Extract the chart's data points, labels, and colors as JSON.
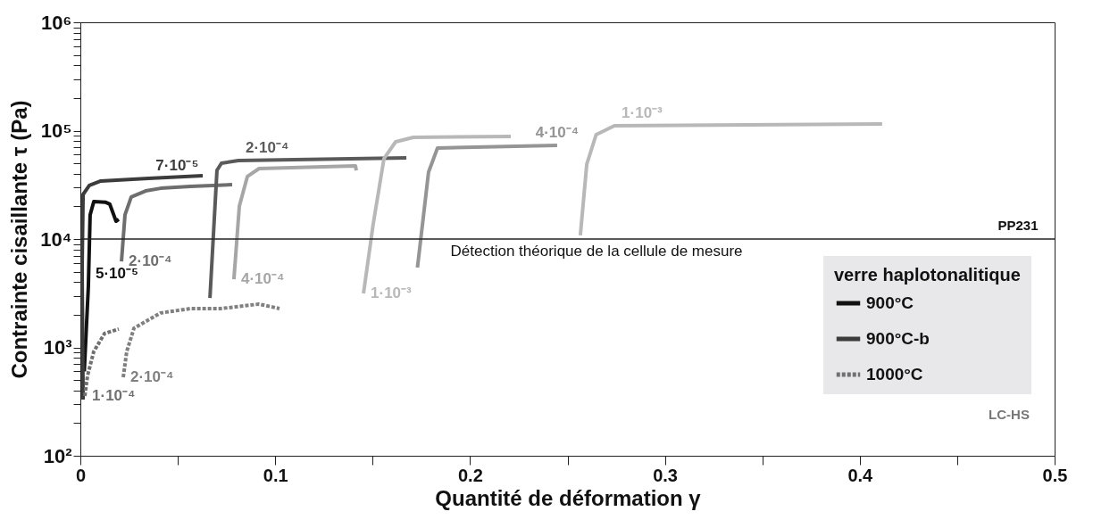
{
  "chart_data": {
    "type": "line",
    "xlabel": "Quantité de déformation γ",
    "ylabel": "Contrainte cisaillante τ (Pa)",
    "legend_title": "verre haplotonalitique",
    "legend": "right",
    "log": "y",
    "grid": false,
    "xlim": [
      0,
      0.5
    ],
    "xticks": [
      0,
      {
        "value": 0.05,
        "label": null
      },
      0.1,
      {
        "value": 0.15,
        "label": null
      },
      0.2,
      {
        "value": 0.25,
        "label": null
      },
      0.3,
      {
        "value": 0.35,
        "label": null
      },
      0.4,
      {
        "value": 0.45,
        "label": null
      },
      0.5
    ],
    "ylim": [
      100,
      1000000
    ],
    "yticks": [
      {
        "value": 100,
        "label": "10²"
      },
      {
        "value": 200,
        "label": null
      },
      {
        "value": 300,
        "label": null
      },
      {
        "value": 400,
        "label": null
      },
      {
        "value": 500,
        "label": null
      },
      {
        "value": 600,
        "label": null
      },
      {
        "value": 700,
        "label": null
      },
      {
        "value": 800,
        "label": null
      },
      {
        "value": 900,
        "label": null
      },
      {
        "value": 1000,
        "label": "10³"
      },
      {
        "value": 2000,
        "label": null
      },
      {
        "value": 3000,
        "label": null
      },
      {
        "value": 4000,
        "label": null
      },
      {
        "value": 5000,
        "label": null
      },
      {
        "value": 6000,
        "label": null
      },
      {
        "value": 7000,
        "label": null
      },
      {
        "value": 8000,
        "label": null
      },
      {
        "value": 9000,
        "label": null
      },
      {
        "value": 10000,
        "label": "10⁴"
      },
      {
        "value": 20000,
        "label": null
      },
      {
        "value": 30000,
        "label": null
      },
      {
        "value": 40000,
        "label": null
      },
      {
        "value": 50000,
        "label": null
      },
      {
        "value": 60000,
        "label": null
      },
      {
        "value": 70000,
        "label": null
      },
      {
        "value": 80000,
        "label": null
      },
      {
        "value": 90000,
        "label": null
      },
      {
        "value": 100000,
        "label": "10⁵"
      },
      {
        "value": 200000,
        "label": null
      },
      {
        "value": 300000,
        "label": null
      },
      {
        "value": 400000,
        "label": null
      },
      {
        "value": 500000,
        "label": null
      },
      {
        "value": 600000,
        "label": null
      },
      {
        "value": 700000,
        "label": null
      },
      {
        "value": 800000,
        "label": null
      },
      {
        "value": 900000,
        "label": null
      },
      {
        "value": 1000000,
        "label": "10⁶"
      }
    ],
    "series": [
      {
        "name": "900°C",
        "color": "#111111",
        "line_style": "solid",
        "x": [
          0.002,
          0.0041,
          0.005,
          0.0069,
          0.0128,
          0.0151,
          0.0183,
          0.0197
        ],
        "values": [
          600,
          3660,
          16700,
          22200,
          21900,
          21000,
          14600,
          15200
        ]
      },
      {
        "name": "900°C-b",
        "color": "#3c3c3c",
        "line_style": "solid",
        "x": [
          0.0014,
          0.0009,
          0.0014,
          0.0046,
          0.0105,
          0.035,
          0.0628
        ],
        "values": [
          330,
          5350,
          25800,
          31200,
          34300,
          36300,
          38400
        ]
      },
      {
        "name": "1000°C",
        "color": "#707070",
        "line_style": "dashed",
        "x": [
          0.0023,
          0.0037,
          0.0069,
          0.0124,
          0.0197
        ],
        "values": [
          356,
          551,
          918,
          1343,
          1476
        ]
      },
      {
        "color": "#6e6e6e",
        "line_style": "solid",
        "x": [
          0.0211,
          0.0229,
          0.0261,
          0.0335,
          0.0412,
          0.0564,
          0.0779
        ],
        "values": [
          6220,
          16700,
          24400,
          27800,
          29400,
          30600,
          31800
        ]
      },
      {
        "color": "#5a5a5a",
        "line_style": "solid",
        "x": [
          0.0665,
          0.0701,
          0.0724,
          0.0811,
          0.1673
        ],
        "values": [
          2860,
          43000,
          50100,
          53000,
          56100
        ]
      },
      {
        "color": "#a6a6a6",
        "line_style": "solid",
        "x": [
          0.0788,
          0.0816,
          0.0857,
          0.0917,
          0.1412,
          0.1416
        ],
        "values": [
          4260,
          20200,
          37700,
          44700,
          47300,
          43000
        ]
      },
      {
        "color": "#b8b8b8",
        "line_style": "solid",
        "x": [
          0.1453,
          0.1503,
          0.1558,
          0.1618,
          0.1709,
          0.2209
        ],
        "values": [
          3150,
          13800,
          55100,
          78900,
          86700,
          88500
        ]
      },
      {
        "color": "#959595",
        "line_style": "solid",
        "x": [
          0.173,
          0.1787,
          0.1833,
          0.2447
        ],
        "values": [
          5460,
          41400,
          69200,
          73100
        ]
      },
      {
        "color": "#b8b8b8",
        "line_style": "solid",
        "x": [
          0.2566,
          0.2599,
          0.2647,
          0.2741,
          0.4115
        ],
        "values": [
          10800,
          49100,
          91800,
          110900,
          115300
        ]
      },
      {
        "color": "#808080",
        "line_style": "dashed",
        "x": [
          0.022,
          0.0238,
          0.0275,
          0.0412,
          0.0564,
          0.072,
          0.0917,
          0.1022
        ],
        "values": [
          530,
          918,
          1500,
          2080,
          2280,
          2280,
          2510,
          2280
        ]
      }
    ],
    "ref_lines": [
      {
        "axis": "y",
        "value": 10000,
        "label": "Détection théorique de la cellule de mesure",
        "color": "#222222"
      }
    ],
    "annotations": [
      {
        "text": "5·10⁻⁵",
        "x": 0.0041,
        "y": 3660
      },
      {
        "text": "7·10⁻⁵",
        "x": 0.035,
        "y": 36300
      },
      {
        "text": "1·10⁻⁴",
        "x": 0.0023,
        "y": 356
      },
      {
        "text": "2·10⁻⁴",
        "x": 0.0211,
        "y": 6220
      },
      {
        "text": "2·10⁻⁴",
        "x": 0.0811,
        "y": 53000
      },
      {
        "text": "4·10⁻⁴",
        "x": 0.0788,
        "y": 4260
      },
      {
        "text": "1·10⁻³",
        "x": 0.1453,
        "y": 3150
      },
      {
        "text": "4·10⁻⁴",
        "x": 0.2447,
        "y": 73100
      },
      {
        "text": "1·10⁻³",
        "x": 0.2741,
        "y": 110900
      },
      {
        "text": "2·10⁻⁴",
        "x": 0.022,
        "y": 530
      },
      "PP231",
      "LC-HS"
    ]
  }
}
